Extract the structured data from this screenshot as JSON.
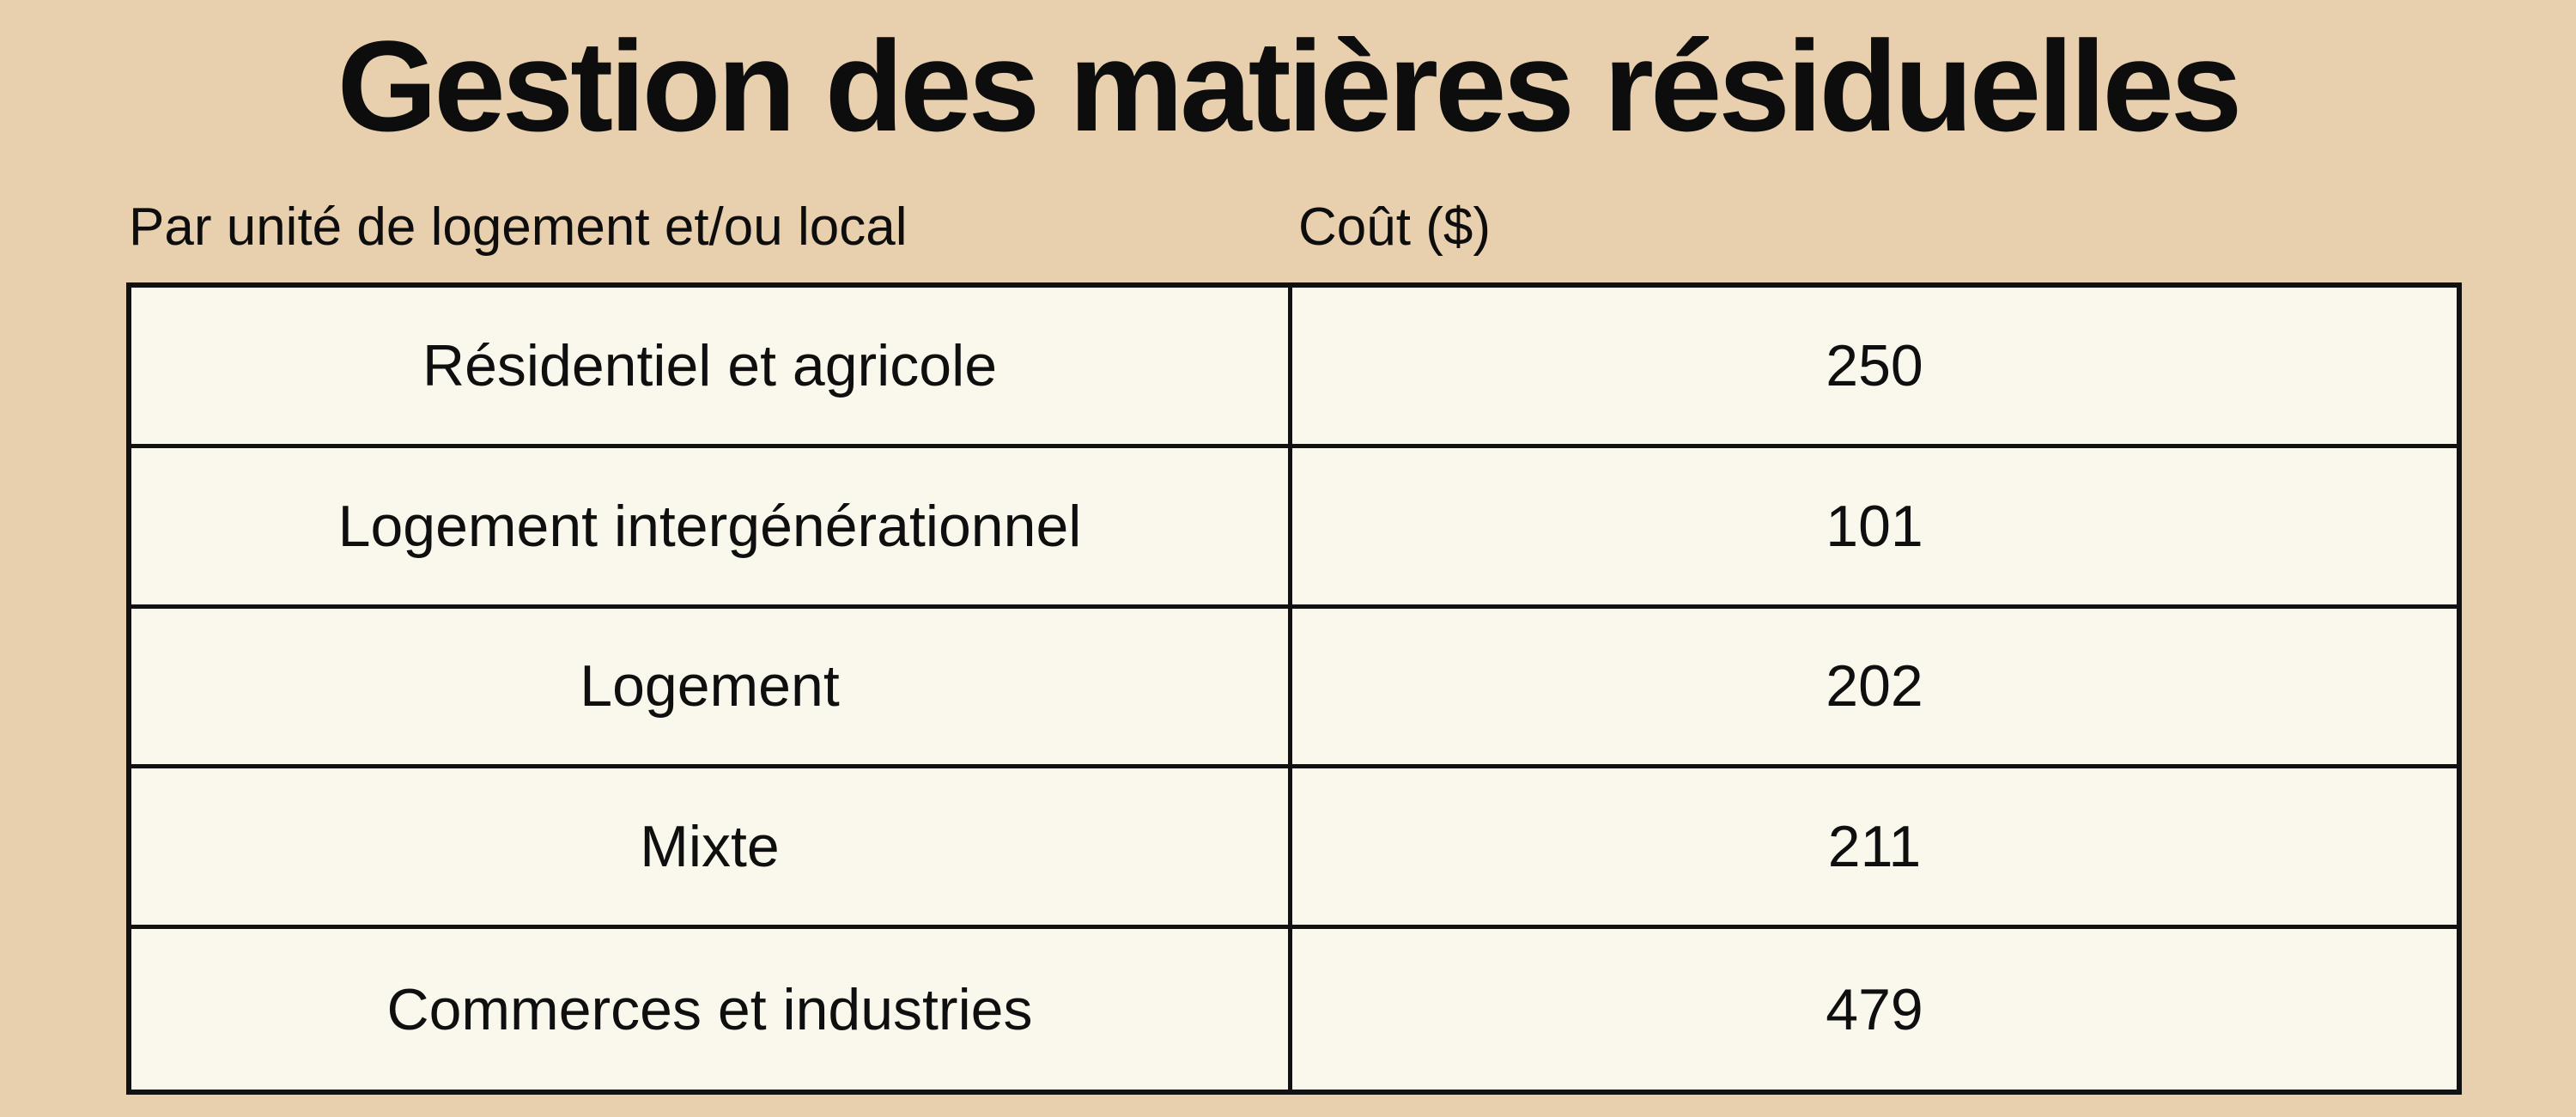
{
  "page": {
    "title": "Gestion des matières résiduelles"
  },
  "table": {
    "column_headers": {
      "category": "Par unité de logement et/ou local",
      "cost": "Coût ($)"
    },
    "rows": [
      {
        "label": "Résidentiel et agricole",
        "value": "250"
      },
      {
        "label": "Logement intergénérationnel",
        "value": "101"
      },
      {
        "label": "Logement",
        "value": "202"
      },
      {
        "label": "Mixte",
        "value": "211"
      },
      {
        "label": "Commerces et industries",
        "value": "479"
      }
    ]
  },
  "colors": {
    "page_background": "#e8cfae",
    "cell_background": "#faf8ec",
    "border": "#111111",
    "text": "#0d0d0d"
  },
  "chart_data": {
    "type": "table",
    "title": "Gestion des matières résiduelles",
    "columns": [
      "Par unité de logement et/ou local",
      "Coût ($)"
    ],
    "categories": [
      "Résidentiel et agricole",
      "Logement intergénérationnel",
      "Logement",
      "Mixte",
      "Commerces et industries"
    ],
    "values": [
      250,
      101,
      202,
      211,
      479
    ],
    "ylabel": "Coût ($)",
    "legend": false,
    "grid": false
  }
}
